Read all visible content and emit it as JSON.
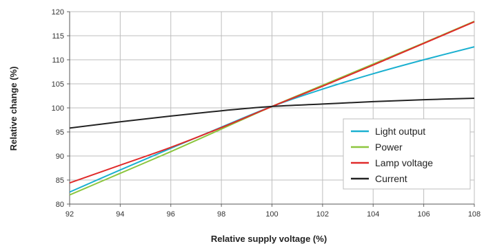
{
  "chart_data": {
    "type": "line",
    "xlabel": "Relative supply voltage (%)",
    "ylabel": "Relative change (%)",
    "xlim": [
      92,
      108
    ],
    "ylim": [
      80,
      120
    ],
    "xticks": [
      92,
      94,
      96,
      98,
      100,
      102,
      104,
      106,
      108
    ],
    "yticks": [
      80,
      85,
      90,
      95,
      100,
      105,
      110,
      115,
      120
    ],
    "grid": true,
    "legend_position": "bottom-right",
    "series": [
      {
        "name": "Light output",
        "color": "#1ab0d0",
        "x": [
          92,
          94,
          96,
          98,
          100,
          102,
          104,
          106,
          108
        ],
        "y": [
          82.5,
          87.1,
          91.6,
          96.0,
          100.3,
          103.9,
          107.1,
          110.0,
          112.7
        ]
      },
      {
        "name": "Power",
        "color": "#8cc63e",
        "x": [
          92,
          94,
          96,
          98,
          100,
          102,
          104,
          106,
          108
        ],
        "y": [
          81.9,
          86.4,
          90.9,
          95.6,
          100.3,
          104.7,
          109.1,
          113.5,
          118.0
        ]
      },
      {
        "name": "Lamp voltage",
        "color": "#e02a2a",
        "x": [
          92,
          94,
          96,
          98,
          100,
          102,
          104,
          106,
          108
        ],
        "y": [
          84.4,
          88.1,
          91.8,
          95.9,
          100.3,
          104.5,
          108.9,
          113.4,
          117.9
        ]
      },
      {
        "name": "Current",
        "color": "#222222",
        "x": [
          92,
          94,
          96,
          98,
          100,
          102,
          104,
          106,
          108
        ],
        "y": [
          95.8,
          97.1,
          98.3,
          99.4,
          100.3,
          100.8,
          101.3,
          101.7,
          102.0
        ]
      }
    ]
  }
}
